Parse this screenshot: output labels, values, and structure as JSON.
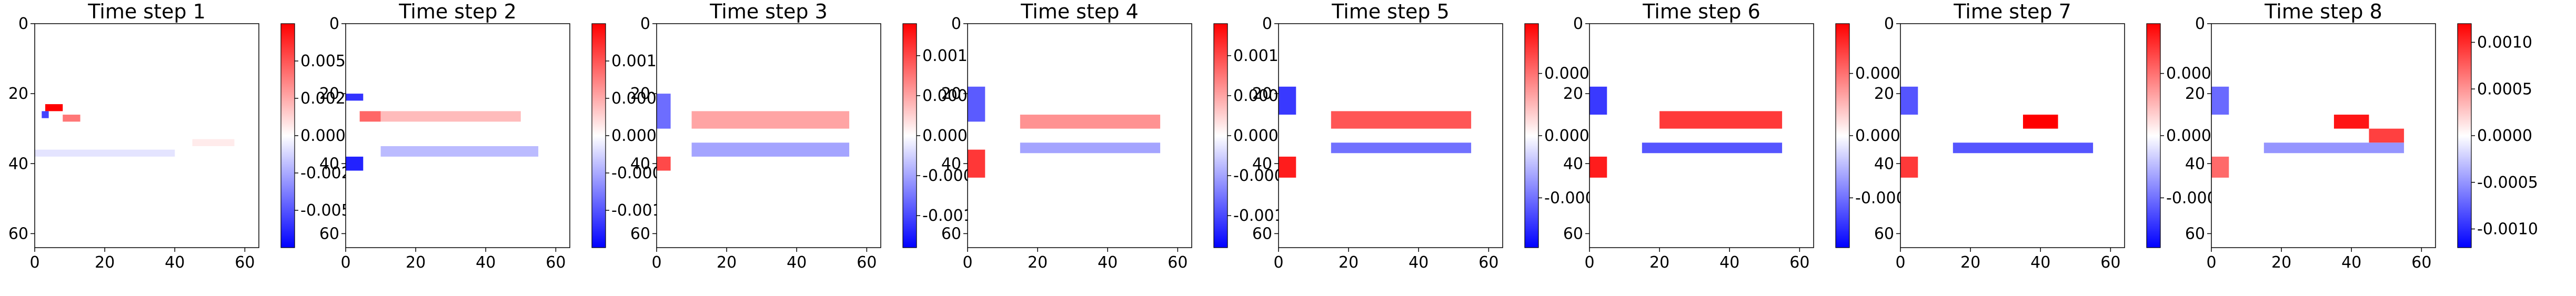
{
  "chart_data": [
    {
      "type": "heatmap",
      "title": "Time step 1",
      "xlim": [
        0,
        64
      ],
      "ylim": [
        64,
        0
      ],
      "xticks": [
        "0",
        "20",
        "40",
        "60"
      ],
      "yticks": [
        "0",
        "20",
        "40",
        "60"
      ],
      "colormap": "bwr",
      "colorbar": {
        "range": [
          -0.0075,
          0.0075
        ],
        "ticks": [
          "-0.0050",
          "-0.0025",
          "0.0000",
          "0.0025",
          "0.0050"
        ],
        "tick_values": [
          -0.005,
          -0.0025,
          0,
          0.0025,
          0.005
        ]
      },
      "blobs": [
        {
          "x": [
            3,
            8
          ],
          "y": [
            23,
            25
          ],
          "value": 0.0075
        },
        {
          "x": [
            2,
            4
          ],
          "y": [
            25,
            27
          ],
          "value": -0.0055
        },
        {
          "x": [
            8,
            13
          ],
          "y": [
            26,
            28
          ],
          "value": 0.004
        },
        {
          "x": [
            0,
            40
          ],
          "y": [
            36,
            38
          ],
          "value": -0.0008
        },
        {
          "x": [
            45,
            57
          ],
          "y": [
            33,
            35
          ],
          "value": 0.0006
        }
      ]
    },
    {
      "type": "heatmap",
      "title": "Time step 2",
      "xlim": [
        0,
        64
      ],
      "ylim": [
        64,
        0
      ],
      "xticks": [
        "0",
        "20",
        "40",
        "60"
      ],
      "yticks": [
        "0",
        "20",
        "40",
        "60"
      ],
      "colormap": "bwr",
      "colorbar": {
        "range": [
          -0.0015,
          0.0015
        ],
        "ticks": [
          "-0.0010",
          "-0.0005",
          "0.0000",
          "0.0005",
          "0.0010"
        ],
        "tick_values": [
          -0.001,
          -0.0005,
          0,
          0.0005,
          0.001
        ]
      },
      "blobs": [
        {
          "x": [
            0,
            5
          ],
          "y": [
            20,
            22
          ],
          "value": -0.0012
        },
        {
          "x": [
            4,
            10
          ],
          "y": [
            25,
            28
          ],
          "value": 0.0009
        },
        {
          "x": [
            0,
            5
          ],
          "y": [
            38,
            42
          ],
          "value": -0.0013
        },
        {
          "x": [
            10,
            50
          ],
          "y": [
            25,
            28
          ],
          "value": 0.0004
        },
        {
          "x": [
            10,
            55
          ],
          "y": [
            35,
            38
          ],
          "value": -0.0004
        }
      ]
    },
    {
      "type": "heatmap",
      "title": "Time step 3",
      "xlim": [
        0,
        64
      ],
      "ylim": [
        64,
        0
      ],
      "xticks": [
        "0",
        "20",
        "40",
        "60"
      ],
      "yticks": [
        "0",
        "20",
        "40",
        "60"
      ],
      "colormap": "bwr",
      "colorbar": {
        "range": [
          -0.0014,
          0.0014
        ],
        "ticks": [
          "-0.0010",
          "-0.0005",
          "0.0000",
          "0.0005",
          "0.0010"
        ],
        "tick_values": [
          -0.001,
          -0.0005,
          0,
          0.0005,
          0.001
        ]
      },
      "blobs": [
        {
          "x": [
            0,
            4
          ],
          "y": [
            20,
            30
          ],
          "value": -0.0008
        },
        {
          "x": [
            0,
            4
          ],
          "y": [
            38,
            42
          ],
          "value": 0.001
        },
        {
          "x": [
            10,
            55
          ],
          "y": [
            25,
            30
          ],
          "value": 0.0005
        },
        {
          "x": [
            10,
            55
          ],
          "y": [
            34,
            38
          ],
          "value": -0.0005
        }
      ]
    },
    {
      "type": "heatmap",
      "title": "Time step 4",
      "xlim": [
        0,
        64
      ],
      "ylim": [
        64,
        0
      ],
      "xticks": [
        "0",
        "20",
        "40",
        "60"
      ],
      "yticks": [
        "0",
        "20",
        "40",
        "60"
      ],
      "colormap": "bwr",
      "colorbar": {
        "range": [
          -0.0014,
          0.0014
        ],
        "ticks": [
          "-0.0010",
          "-0.0005",
          "0.0000",
          "0.0005",
          "0.0010"
        ],
        "tick_values": [
          -0.001,
          -0.0005,
          0,
          0.0005,
          0.001
        ]
      },
      "blobs": [
        {
          "x": [
            0,
            5
          ],
          "y": [
            18,
            28
          ],
          "value": -0.0009
        },
        {
          "x": [
            0,
            5
          ],
          "y": [
            36,
            44
          ],
          "value": 0.0011
        },
        {
          "x": [
            15,
            55
          ],
          "y": [
            26,
            30
          ],
          "value": 0.0006
        },
        {
          "x": [
            15,
            55
          ],
          "y": [
            34,
            37
          ],
          "value": -0.0005
        }
      ]
    },
    {
      "type": "heatmap",
      "title": "Time step 5",
      "xlim": [
        0,
        64
      ],
      "ylim": [
        64,
        0
      ],
      "xticks": [
        "0",
        "20",
        "40",
        "60"
      ],
      "yticks": [
        "0",
        "20",
        "40",
        "60"
      ],
      "colormap": "bwr",
      "colorbar": {
        "range": [
          -0.0009,
          0.0009
        ],
        "ticks": [
          "-0.0005",
          "0.0000",
          "0.0005"
        ],
        "tick_values": [
          -0.0005,
          0,
          0.0005
        ]
      },
      "blobs": [
        {
          "x": [
            0,
            5
          ],
          "y": [
            18,
            26
          ],
          "value": -0.0007
        },
        {
          "x": [
            0,
            5
          ],
          "y": [
            38,
            44
          ],
          "value": 0.0008
        },
        {
          "x": [
            15,
            55
          ],
          "y": [
            25,
            30
          ],
          "value": 0.0006
        },
        {
          "x": [
            15,
            55
          ],
          "y": [
            34,
            37
          ],
          "value": -0.0005
        }
      ]
    },
    {
      "type": "heatmap",
      "title": "Time step 6",
      "xlim": [
        0,
        64
      ],
      "ylim": [
        64,
        0
      ],
      "xticks": [
        "0",
        "20",
        "40",
        "60"
      ],
      "yticks": [
        "0",
        "20",
        "40",
        "60"
      ],
      "colormap": "bwr",
      "colorbar": {
        "range": [
          -0.0009,
          0.0009
        ],
        "ticks": [
          "-0.0005",
          "0.0000",
          "0.0005"
        ],
        "tick_values": [
          -0.0005,
          0,
          0.0005
        ]
      },
      "blobs": [
        {
          "x": [
            0,
            5
          ],
          "y": [
            18,
            26
          ],
          "value": -0.0007
        },
        {
          "x": [
            0,
            5
          ],
          "y": [
            38,
            44
          ],
          "value": 0.0008
        },
        {
          "x": [
            20,
            55
          ],
          "y": [
            25,
            30
          ],
          "value": 0.0007
        },
        {
          "x": [
            15,
            55
          ],
          "y": [
            34,
            37
          ],
          "value": -0.0006
        }
      ]
    },
    {
      "type": "heatmap",
      "title": "Time step 7",
      "xlim": [
        0,
        64
      ],
      "ylim": [
        64,
        0
      ],
      "xticks": [
        "0",
        "20",
        "40",
        "60"
      ],
      "yticks": [
        "0",
        "20",
        "40",
        "60"
      ],
      "colormap": "bwr",
      "colorbar": {
        "range": [
          -0.0009,
          0.0009
        ],
        "ticks": [
          "-0.0005",
          "0.0000",
          "0.0005"
        ],
        "tick_values": [
          -0.0005,
          0,
          0.0005
        ]
      },
      "blobs": [
        {
          "x": [
            0,
            5
          ],
          "y": [
            18,
            26
          ],
          "value": -0.0006
        },
        {
          "x": [
            0,
            5
          ],
          "y": [
            38,
            44
          ],
          "value": 0.0007
        },
        {
          "x": [
            35,
            45
          ],
          "y": [
            26,
            30
          ],
          "value": 0.0009
        },
        {
          "x": [
            15,
            55
          ],
          "y": [
            34,
            37
          ],
          "value": -0.0006
        }
      ]
    },
    {
      "type": "heatmap",
      "title": "Time step 8",
      "xlim": [
        0,
        64
      ],
      "ylim": [
        64,
        0
      ],
      "xticks": [
        "0",
        "20",
        "40",
        "60"
      ],
      "yticks": [
        "0",
        "20",
        "40",
        "60"
      ],
      "colormap": "bwr",
      "colorbar": {
        "range": [
          -0.0012,
          0.0012
        ],
        "ticks": [
          "-0.0010",
          "-0.0005",
          "0.0000",
          "0.0005",
          "0.0010"
        ],
        "tick_values": [
          -0.001,
          -0.0005,
          0,
          0.0005,
          0.001
        ]
      },
      "blobs": [
        {
          "x": [
            0,
            5
          ],
          "y": [
            18,
            26
          ],
          "value": -0.0007
        },
        {
          "x": [
            0,
            5
          ],
          "y": [
            38,
            44
          ],
          "value": 0.0007
        },
        {
          "x": [
            35,
            45
          ],
          "y": [
            26,
            30
          ],
          "value": 0.0011
        },
        {
          "x": [
            45,
            55
          ],
          "y": [
            30,
            34
          ],
          "value": 0.0009
        },
        {
          "x": [
            15,
            55
          ],
          "y": [
            34,
            37
          ],
          "value": -0.0005
        }
      ]
    }
  ]
}
